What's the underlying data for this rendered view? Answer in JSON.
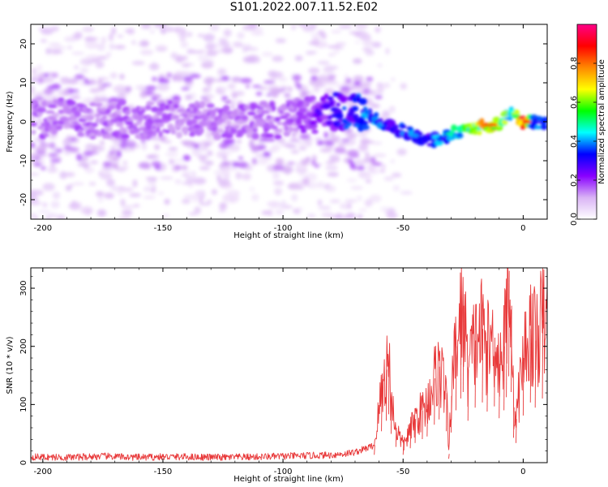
{
  "figure": {
    "title": "S101.2022.007.11.52.E02"
  },
  "chart_data": [
    {
      "type": "heatmap",
      "title": "S101.2022.007.11.52.E02",
      "xlabel": "Height of straight line (km)",
      "ylabel": "Frequency (Hz)",
      "xlim": [
        -205,
        10
      ],
      "ylim": [
        -25,
        25
      ],
      "x_ticks": [
        -200,
        -150,
        -100,
        -50,
        0
      ],
      "y_ticks": [
        -20,
        -10,
        0,
        10,
        20
      ],
      "grid": false,
      "colorbar": {
        "label": "Normalized spectral amplitude",
        "range": [
          0.0,
          1.0
        ],
        "ticks": [
          0.0,
          0.2,
          0.4,
          0.6,
          0.8
        ],
        "colormap": [
          "#ffffff",
          "#d9b3f5",
          "#8800ff",
          "#0000ff",
          "#00ffff",
          "#00ff00",
          "#ffff00",
          "#ff8800",
          "#ff0000",
          "#ff0088"
        ]
      },
      "ridge": {
        "x": [
          -200,
          -190,
          -180,
          -170,
          -160,
          -150,
          -140,
          -130,
          -120,
          -110,
          -100,
          -90,
          -80,
          -75,
          -70,
          -65,
          -60,
          -55,
          -50,
          -45,
          -40,
          -35,
          -30,
          -25,
          -20,
          -15,
          -10,
          -5,
          0,
          5,
          10
        ],
        "frequency": [
          0.5,
          1.5,
          0.5,
          0.8,
          0.0,
          0.8,
          1.0,
          0.0,
          1.0,
          0.5,
          0.5,
          1.5,
          2.5,
          2.8,
          2.8,
          2.5,
          0.5,
          -1.5,
          -2.5,
          -3.5,
          -5.0,
          -4.5,
          -3.0,
          -2.0,
          -1.5,
          -1.0,
          -0.5,
          2.5,
          0.0,
          0.0,
          -0.5
        ],
        "amplitude": [
          0.15,
          0.15,
          0.15,
          0.15,
          0.15,
          0.15,
          0.15,
          0.15,
          0.15,
          0.15,
          0.15,
          0.18,
          0.25,
          0.3,
          0.32,
          0.35,
          0.35,
          0.3,
          0.32,
          0.35,
          0.33,
          0.35,
          0.4,
          0.45,
          0.55,
          0.7,
          0.6,
          0.45,
          0.85,
          0.35,
          0.3
        ]
      }
    },
    {
      "type": "line",
      "xlabel": "Height of straight line (km)",
      "ylabel": "SNR (10 * v/v)",
      "xlim": [
        -205,
        10
      ],
      "ylim": [
        0,
        335
      ],
      "x_ticks": [
        -200,
        -150,
        -100,
        -50,
        0
      ],
      "y_ticks": [
        0,
        100,
        200,
        300
      ],
      "grid": false,
      "color": "#e8393a",
      "x": [
        -205,
        -190,
        -175,
        -160,
        -150,
        -140,
        -125,
        -110,
        -100,
        -90,
        -80,
        -75,
        -70,
        -65,
        -62,
        -59,
        -57,
        -56,
        -55,
        -53,
        -50,
        -47,
        -45,
        -42,
        -40,
        -37,
        -35,
        -32,
        -31,
        -30,
        -28,
        -26,
        -25,
        -23,
        -20,
        -17,
        -15,
        -12,
        -10,
        -8,
        -7,
        -6,
        -5,
        -4,
        -3,
        0,
        3,
        5,
        8,
        10
      ],
      "values": [
        10,
        9,
        11,
        9,
        10,
        10,
        9,
        10,
        11,
        12,
        13,
        15,
        18,
        25,
        30,
        120,
        160,
        185,
        110,
        60,
        30,
        55,
        75,
        90,
        100,
        145,
        165,
        120,
        15,
        115,
        200,
        245,
        270,
        160,
        210,
        230,
        195,
        215,
        170,
        200,
        250,
        330,
        270,
        95,
        75,
        180,
        230,
        210,
        245,
        230
      ]
    }
  ]
}
